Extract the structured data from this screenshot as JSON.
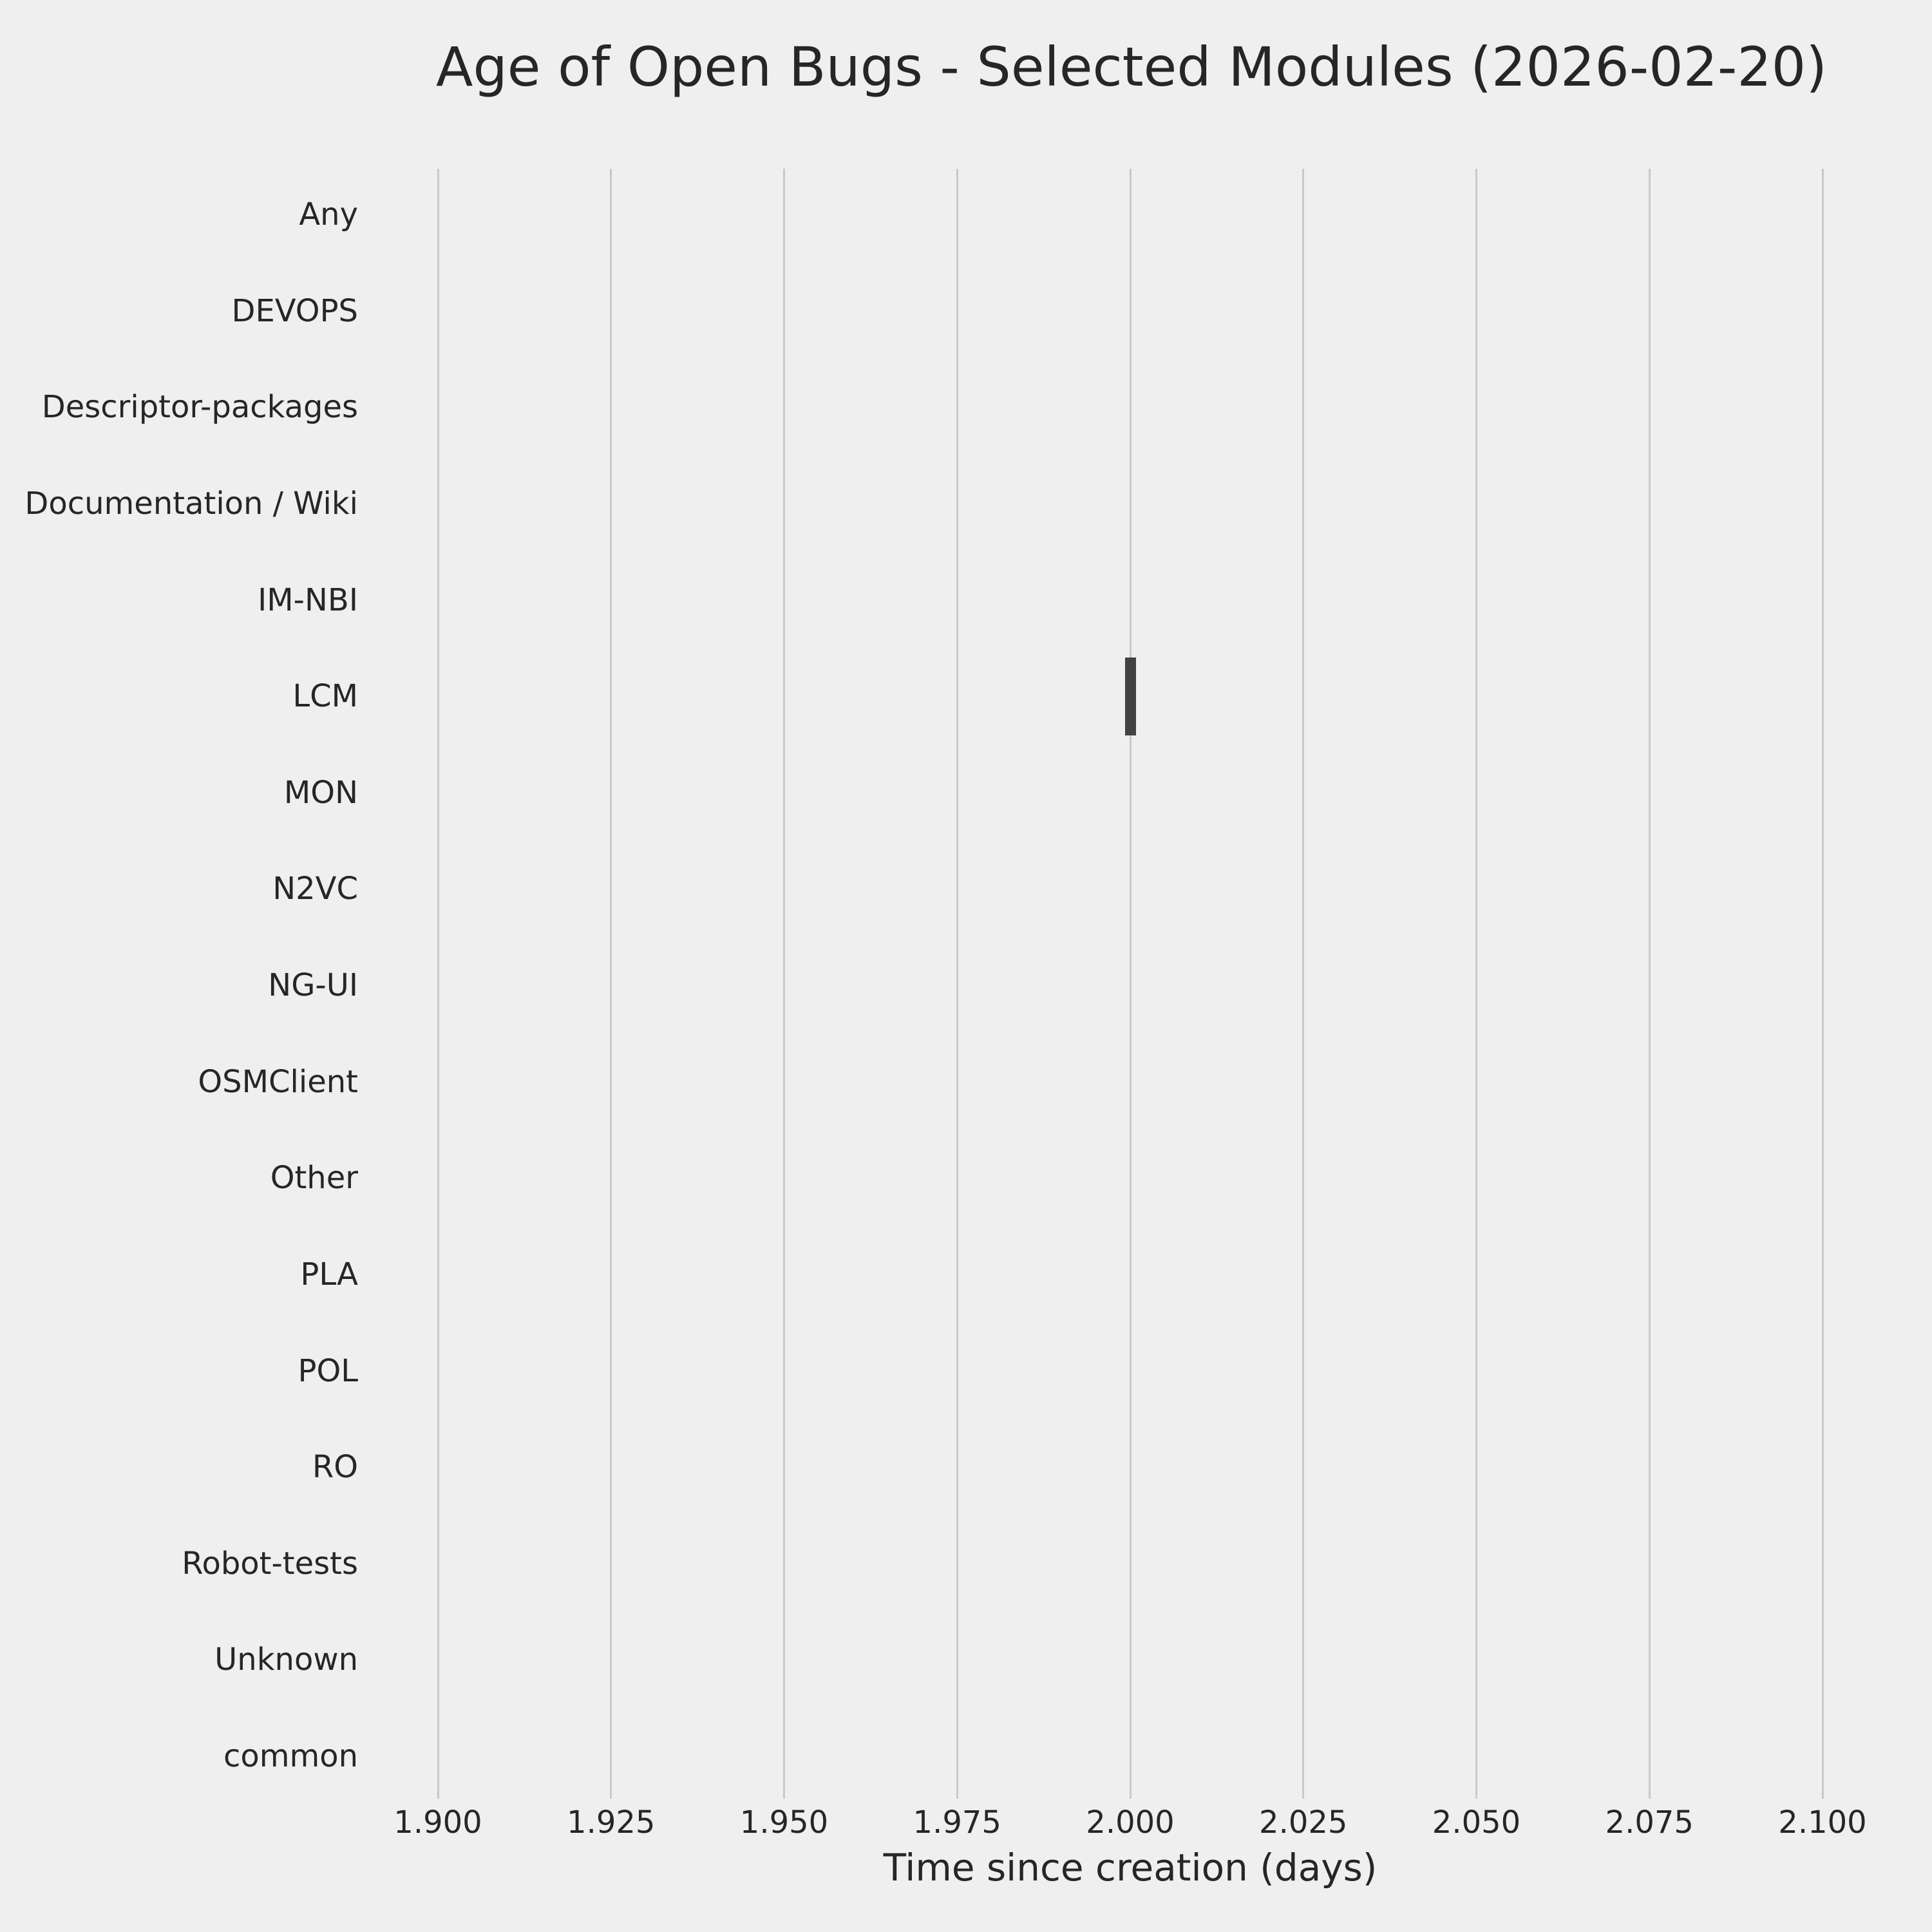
{
  "figure": {
    "background_color": "#efefef",
    "grid_color": "#c9c9c9",
    "box_color": "#424242",
    "text_color": "#262626"
  },
  "chart_data": {
    "type": "box",
    "orientation": "horizontal",
    "title": "Age of Open Bugs - Selected Modules (2026-02-20)",
    "xlabel": "Time since creation (days)",
    "ylabel": "",
    "categories": [
      "Any",
      "DEVOPS",
      "Descriptor-packages",
      "Documentation / Wiki",
      "IM-NBI",
      "LCM",
      "MON",
      "N2VC",
      "NG-UI",
      "OSMClient",
      "Other",
      "PLA",
      "POL",
      "RO",
      "Robot-tests",
      "Unknown",
      "common"
    ],
    "x_tick_labels": [
      "1.900",
      "1.925",
      "1.950",
      "1.975",
      "2.000",
      "2.025",
      "2.050",
      "2.075",
      "2.100"
    ],
    "x_ticks": [
      1.9,
      1.925,
      1.95,
      1.975,
      2.0,
      2.025,
      2.05,
      2.075,
      2.1
    ],
    "xlim": [
      1.89,
      2.11
    ],
    "grid": "vertical-only",
    "legend": "none",
    "boxes": [
      {
        "category": "LCM",
        "min": 2.0,
        "q1": 2.0,
        "median": 2.0,
        "q3": 2.0,
        "max": 2.0
      }
    ]
  }
}
